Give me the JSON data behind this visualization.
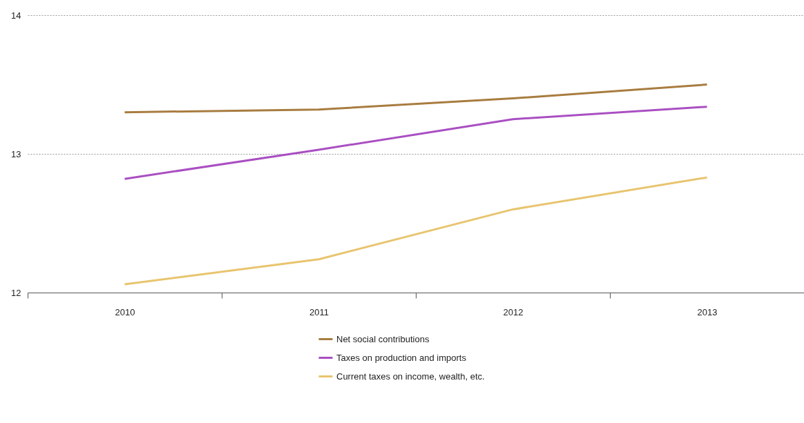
{
  "chart_data": {
    "type": "line",
    "categories": [
      "2010",
      "2011",
      "2012",
      "2013"
    ],
    "series": [
      {
        "name": "Net social contributions",
        "color": "#a87c3f",
        "values": [
          13.3,
          13.32,
          13.4,
          13.5
        ]
      },
      {
        "name": "Taxes on production and imports",
        "color": "#a94fc2",
        "values": [
          12.82,
          13.03,
          13.25,
          13.34
        ]
      },
      {
        "name": "Current taxes on income, wealth, etc.",
        "color": "#e8c46e",
        "values": [
          12.06,
          12.24,
          12.6,
          12.83
        ]
      }
    ],
    "ylim": [
      12,
      14
    ],
    "yticks": [
      12,
      13,
      14
    ],
    "grid": "y",
    "legend": "bottom",
    "marker": "none",
    "line_style": "solid"
  }
}
